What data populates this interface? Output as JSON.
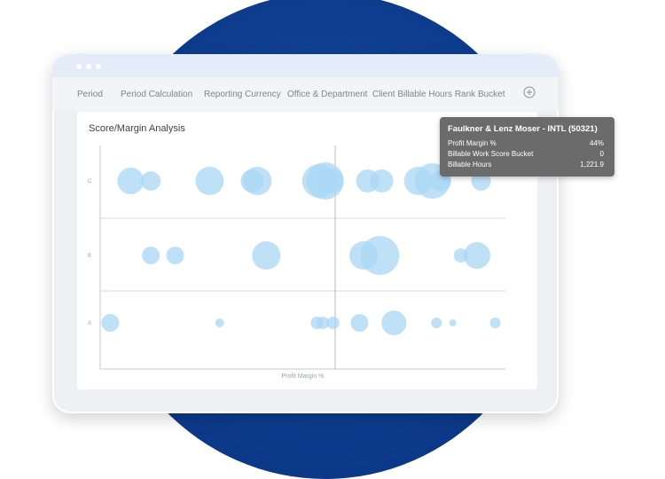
{
  "toolbar": {
    "items": [
      "Period",
      "Period Calculation",
      "Reporting Currency",
      "Office & Department",
      "Client Billable Hours Rank Bucket"
    ]
  },
  "panel": {
    "title": "Score/Margin Analysis"
  },
  "chart_data": {
    "type": "scatter",
    "xlabel": "Profit Margin %",
    "ylabel": "",
    "rows": [
      "A",
      "B",
      "C"
    ],
    "xlim": [
      0,
      100
    ],
    "reference_line_x": 58,
    "color": "#a9d7f5",
    "series": [
      {
        "row": "C",
        "points": [
          {
            "x": 7.5,
            "r": 15
          },
          {
            "x": 12.5,
            "r": 11
          },
          {
            "x": 27,
            "r": 16
          },
          {
            "x": 37.5,
            "r": 13
          },
          {
            "x": 38.8,
            "r": 16
          },
          {
            "x": 54,
            "r": 19
          },
          {
            "x": 55.5,
            "r": 21
          },
          {
            "x": 57,
            "r": 14
          },
          {
            "x": 66,
            "r": 13
          },
          {
            "x": 69.5,
            "r": 13
          },
          {
            "x": 78.5,
            "r": 16
          },
          {
            "x": 82,
            "r": 20
          },
          {
            "x": 84,
            "r": 12
          },
          {
            "x": 94,
            "r": 11
          }
        ]
      },
      {
        "row": "B",
        "points": [
          {
            "x": 12.5,
            "r": 10
          },
          {
            "x": 18.5,
            "r": 10
          },
          {
            "x": 41,
            "r": 16
          },
          {
            "x": 65,
            "r": 16
          },
          {
            "x": 69,
            "r": 22
          },
          {
            "x": 89,
            "r": 8
          },
          {
            "x": 93,
            "r": 15
          }
        ]
      },
      {
        "row": "A",
        "points": [
          {
            "x": 2.5,
            "r": 10
          },
          {
            "x": 29.5,
            "r": 5
          },
          {
            "x": 53.5,
            "r": 7
          },
          {
            "x": 55,
            "r": 7
          },
          {
            "x": 57.5,
            "r": 7
          },
          {
            "x": 64,
            "r": 10
          },
          {
            "x": 72.5,
            "r": 14
          },
          {
            "x": 83,
            "r": 6
          },
          {
            "x": 87,
            "r": 4
          },
          {
            "x": 97.5,
            "r": 6
          }
        ]
      }
    ]
  },
  "tooltip": {
    "title": "Faulkner & Lenz Moser - INTL (50321)",
    "rows": [
      {
        "label": "Profit Margin %",
        "value": "44%"
      },
      {
        "label": "Billable Work Score Bucket",
        "value": "0"
      },
      {
        "label": "Billable Hours",
        "value": "1,221.9"
      }
    ]
  }
}
